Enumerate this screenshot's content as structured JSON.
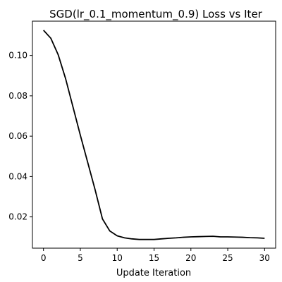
{
  "chart_data": {
    "type": "line",
    "title": "SGD(lr_0.1_momentum_0.9) Loss vs Iter",
    "xlabel": "Update Iteration",
    "ylabel": "",
    "xlim": [
      -1.5,
      31.5
    ],
    "ylim": [
      0.0045,
      0.117
    ],
    "xticks": [
      0,
      5,
      10,
      15,
      20,
      25,
      30
    ],
    "yticks": [
      0.02,
      0.04,
      0.06,
      0.08,
      0.1
    ],
    "ytick_labels": [
      "0.02",
      "0.04",
      "0.06",
      "0.08",
      "0.10"
    ],
    "grid": false,
    "legend": "none",
    "series": [
      {
        "color": "#000000",
        "x": [
          0,
          1,
          2,
          3,
          4,
          5,
          6,
          7,
          8,
          9,
          10,
          11,
          12,
          13,
          14,
          15,
          16,
          17,
          18,
          19,
          20,
          21,
          22,
          23,
          24,
          25,
          26,
          27,
          28,
          29,
          30
        ],
        "y": [
          0.1125,
          0.1085,
          0.1003,
          0.0885,
          0.0745,
          0.0605,
          0.047,
          0.0335,
          0.019,
          0.013,
          0.0106,
          0.0096,
          0.0091,
          0.0088,
          0.0088,
          0.0088,
          0.0091,
          0.0094,
          0.0096,
          0.0099,
          0.0101,
          0.0102,
          0.0103,
          0.0104,
          0.0101,
          0.0101,
          0.01,
          0.0099,
          0.0097,
          0.0096,
          0.0094
        ]
      }
    ]
  }
}
